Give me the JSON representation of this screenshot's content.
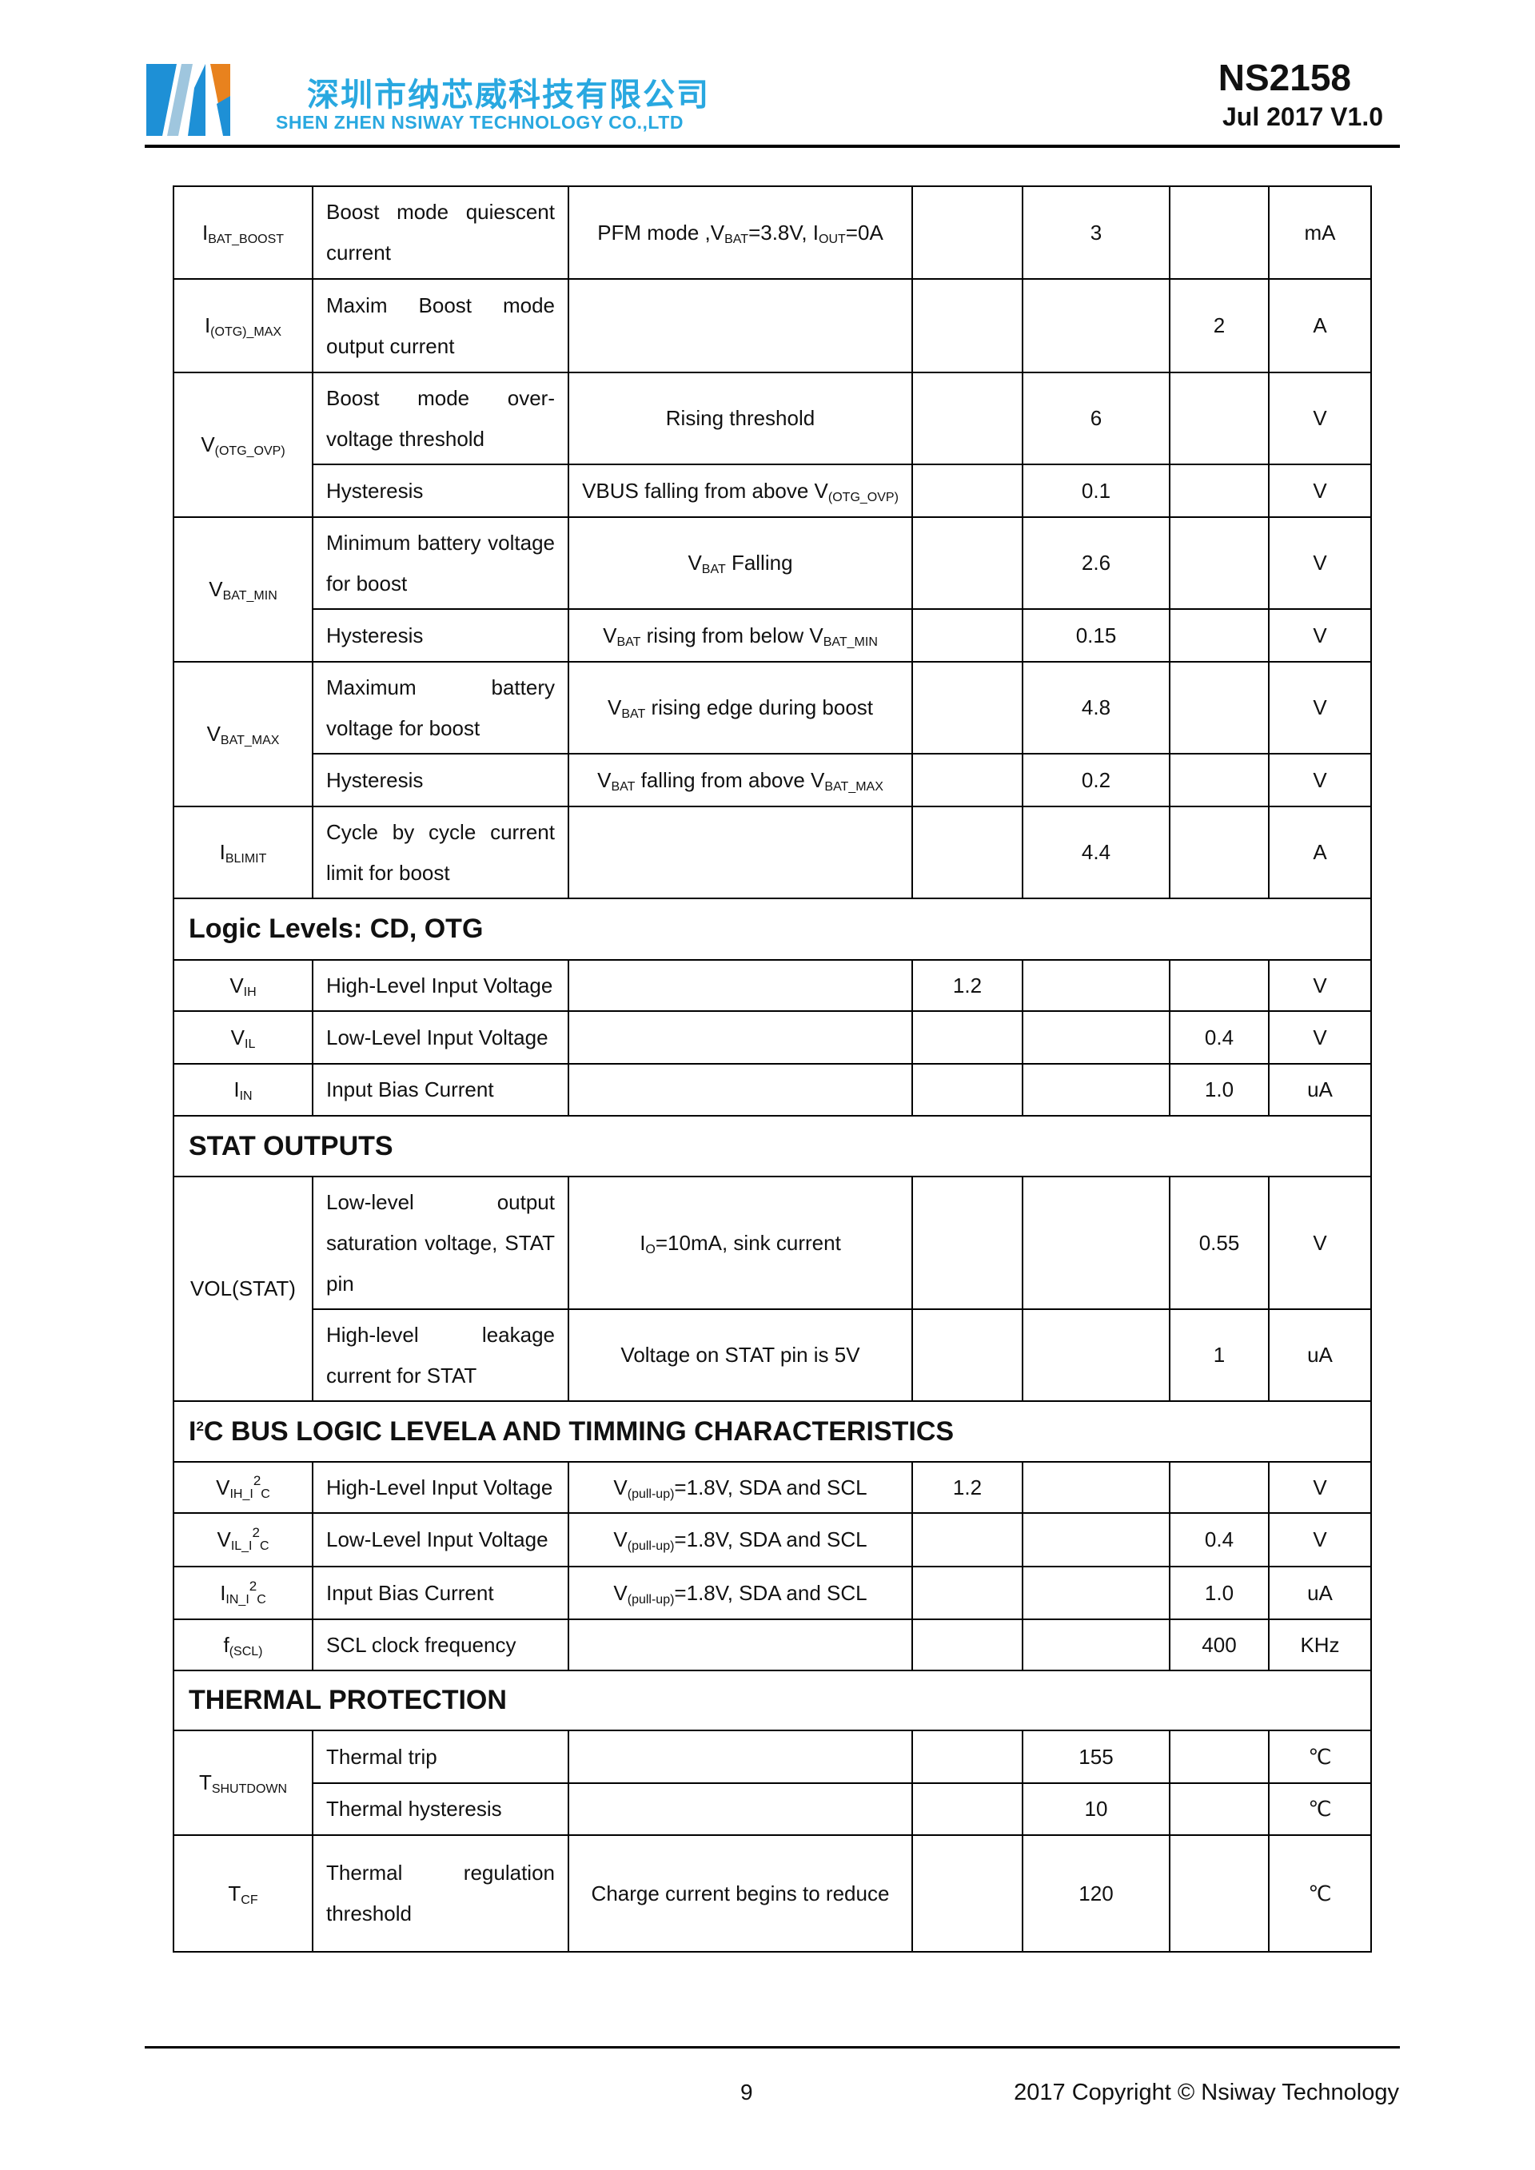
{
  "header": {
    "company_cn": "深圳市纳芯威科技有限公司",
    "company_en": "SHEN ZHEN NSIWAY  TECHNOLOGY CO.,LTD",
    "part_number": "NS2158",
    "version": "Jul 2017 V1.0",
    "logo_colors": {
      "blue": "#1e90d6",
      "orange": "#e8821e"
    }
  },
  "table": {
    "rows": [
      {
        "sym": [
          {
            "t": "I"
          },
          {
            "sub": "BAT_BOOST"
          }
        ],
        "symspan": 1,
        "desc": "Boost mode quiescent current",
        "cond": [
          {
            "t": "PFM mode ,V"
          },
          {
            "sub": "BAT"
          },
          {
            "t": "=3.8V, I"
          },
          {
            "sub": "OUT"
          },
          {
            "t": "=0A"
          }
        ],
        "min": "",
        "typ": "3",
        "max": "",
        "unit": "mA",
        "h": 116
      },
      {
        "sym": [
          {
            "t": "I"
          },
          {
            "sub": "(OTG)_MAX"
          }
        ],
        "symspan": 1,
        "desc": "Maxim Boost mode output current",
        "cond": [],
        "min": "",
        "typ": "",
        "max": "2",
        "unit": "A",
        "h": 117
      },
      {
        "sym": [
          {
            "t": "V"
          },
          {
            "sub": "(OTG_OVP)"
          }
        ],
        "symspan": 2,
        "desc": "Boost mode over-voltage threshold",
        "cond": [
          {
            "t": "Rising threshold"
          }
        ],
        "min": "",
        "typ": "6",
        "max": "",
        "unit": "V",
        "h": 115
      },
      {
        "desc": "Hysteresis",
        "cond": [
          {
            "t": "VBUS falling from above V"
          },
          {
            "sub": "(OTG_OVP)"
          }
        ],
        "min": "",
        "typ": "0.1",
        "max": "",
        "unit": "V",
        "h": 66
      },
      {
        "sym": [
          {
            "t": "V"
          },
          {
            "sub": "BAT_MIN"
          }
        ],
        "symspan": 2,
        "desc": "Minimum battery voltage for boost",
        "cond": [
          {
            "t": "V"
          },
          {
            "sub": "BAT"
          },
          {
            "t": " Falling"
          }
        ],
        "min": "",
        "typ": "2.6",
        "max": "",
        "unit": "V",
        "h": 115
      },
      {
        "desc": "Hysteresis",
        "cond": [
          {
            "t": "V"
          },
          {
            "sub": "BAT"
          },
          {
            "t": " rising from below V"
          },
          {
            "sub": "BAT_MIN"
          }
        ],
        "min": "",
        "typ": "0.15",
        "max": "",
        "unit": "V",
        "h": 66
      },
      {
        "sym": [
          {
            "t": "V"
          },
          {
            "sub": "BAT_MAX"
          }
        ],
        "symspan": 2,
        "desc": "Maximum battery voltage for boost",
        "cond": [
          {
            "t": "V"
          },
          {
            "sub": "BAT"
          },
          {
            "t": " rising edge during boost"
          }
        ],
        "min": "",
        "typ": "4.8",
        "max": "",
        "unit": "V",
        "h": 115
      },
      {
        "desc": "Hysteresis",
        "cond": [
          {
            "t": "V"
          },
          {
            "sub": "BAT"
          },
          {
            "t": " falling from above V"
          },
          {
            "sub": "BAT_MAX"
          }
        ],
        "min": "",
        "typ": "0.2",
        "max": "",
        "unit": "V",
        "h": 66
      },
      {
        "sym": [
          {
            "t": "I"
          },
          {
            "sub": "BLIMIT"
          }
        ],
        "symspan": 1,
        "desc": "Cycle by cycle current limit for boost",
        "cond": [],
        "min": "",
        "typ": "4.4",
        "max": "",
        "unit": "A",
        "h": 115
      },
      {
        "section": [
          {
            "t": "Logic Levels: CD, OTG"
          }
        ],
        "h": 77
      },
      {
        "sym": [
          {
            "t": "V"
          },
          {
            "sub": "IH"
          }
        ],
        "symspan": 1,
        "desc": "High-Level Input Voltage",
        "cond": [],
        "min": "1.2",
        "typ": "",
        "max": "",
        "unit": "V",
        "h": 64
      },
      {
        "sym": [
          {
            "t": "V"
          },
          {
            "sub": "IL"
          }
        ],
        "symspan": 1,
        "desc": "Low-Level Input Voltage",
        "cond": [],
        "min": "",
        "typ": "",
        "max": "0.4",
        "unit": "V",
        "h": 66
      },
      {
        "sym": [
          {
            "t": "I"
          },
          {
            "sub": "IN"
          }
        ],
        "symspan": 1,
        "desc": "Input Bias Current",
        "cond": [],
        "min": "",
        "typ": "",
        "max": "1.0",
        "unit": "uA",
        "h": 65
      },
      {
        "section": [
          {
            "t": "STAT OUTPUTS"
          }
        ],
        "h": 76
      },
      {
        "sym": [
          {
            "t": "VOL(STAT)"
          }
        ],
        "symspan": 2,
        "desc": "Low-level output saturation voltage, STAT pin",
        "cond": [
          {
            "t": "I"
          },
          {
            "sub": "O"
          },
          {
            "t": "=10mA, sink current"
          }
        ],
        "min": "",
        "typ": "",
        "max": "0.55",
        "unit": "V",
        "h": 166
      },
      {
        "desc": "High-level leakage current for STAT",
        "cond": [
          {
            "t": "Voltage on STAT pin is 5V"
          }
        ],
        "min": "",
        "typ": "",
        "max": "1",
        "unit": "uA",
        "h": 115
      },
      {
        "section": [
          {
            "t": "I"
          },
          {
            "sup": "2"
          },
          {
            "t": "C BUS LOGIC LEVELA AND TIMMING CHARACTERISTICS"
          }
        ],
        "h": 76
      },
      {
        "sym": [
          {
            "t": "V"
          },
          {
            "sub": "IH_I"
          },
          {
            "sup": "2"
          },
          {
            "sub": "C"
          }
        ],
        "symspan": 1,
        "desc": "High-Level Input Voltage",
        "cond": [
          {
            "t": "V"
          },
          {
            "sub": "(pull-up)"
          },
          {
            "t": "=1.8V, SDA and SCL"
          }
        ],
        "min": "1.2",
        "typ": "",
        "max": "",
        "unit": "V",
        "h": 64
      },
      {
        "sym": [
          {
            "t": "V"
          },
          {
            "sub": "IL_I"
          },
          {
            "sup": "2"
          },
          {
            "sub": "C"
          }
        ],
        "symspan": 1,
        "desc": "Low-Level Input Voltage",
        "cond": [
          {
            "t": "V"
          },
          {
            "sub": "(pull-up)"
          },
          {
            "t": "=1.8V, SDA and SCL"
          }
        ],
        "min": "",
        "typ": "",
        "max": "0.4",
        "unit": "V",
        "h": 67
      },
      {
        "sym": [
          {
            "t": "I"
          },
          {
            "sub": "IN_I"
          },
          {
            "sup": "2"
          },
          {
            "sub": "C"
          }
        ],
        "symspan": 1,
        "desc": "Input Bias Current",
        "cond": [
          {
            "t": "V"
          },
          {
            "sub": "(pull-up)"
          },
          {
            "t": "=1.8V, SDA and SCL"
          }
        ],
        "min": "",
        "typ": "",
        "max": "1.0",
        "unit": "uA",
        "h": 66
      },
      {
        "sym": [
          {
            "t": "f"
          },
          {
            "sub": "(SCL)"
          }
        ],
        "symspan": 1,
        "desc": "SCL clock frequency",
        "cond": [],
        "min": "",
        "typ": "",
        "max": "400",
        "unit": "KHz",
        "h": 64
      },
      {
        "section": [
          {
            "t": "THERMAL PROTECTION"
          }
        ],
        "h": 75
      },
      {
        "sym": [
          {
            "t": "T"
          },
          {
            "sub": "SHUTDOWN"
          }
        ],
        "symspan": 2,
        "desc": "Thermal trip",
        "cond": [],
        "min": "",
        "typ": "155",
        "max": "",
        "unit": "℃",
        "h": 66
      },
      {
        "desc": "Thermal hysteresis",
        "cond": [],
        "min": "",
        "typ": "10",
        "max": "",
        "unit": "℃",
        "h": 65
      },
      {
        "sym": [
          {
            "t": "T"
          },
          {
            "sub": "CF"
          }
        ],
        "symspan": 1,
        "desc": "Thermal regulation threshold",
        "cond": [
          {
            "t": "Charge current begins to reduce"
          }
        ],
        "min": "",
        "typ": "120",
        "max": "",
        "unit": "℃",
        "h": 146
      }
    ]
  },
  "footer": {
    "page_number": "9",
    "copyright": "2017 Copyright © Nsiway Technology"
  }
}
